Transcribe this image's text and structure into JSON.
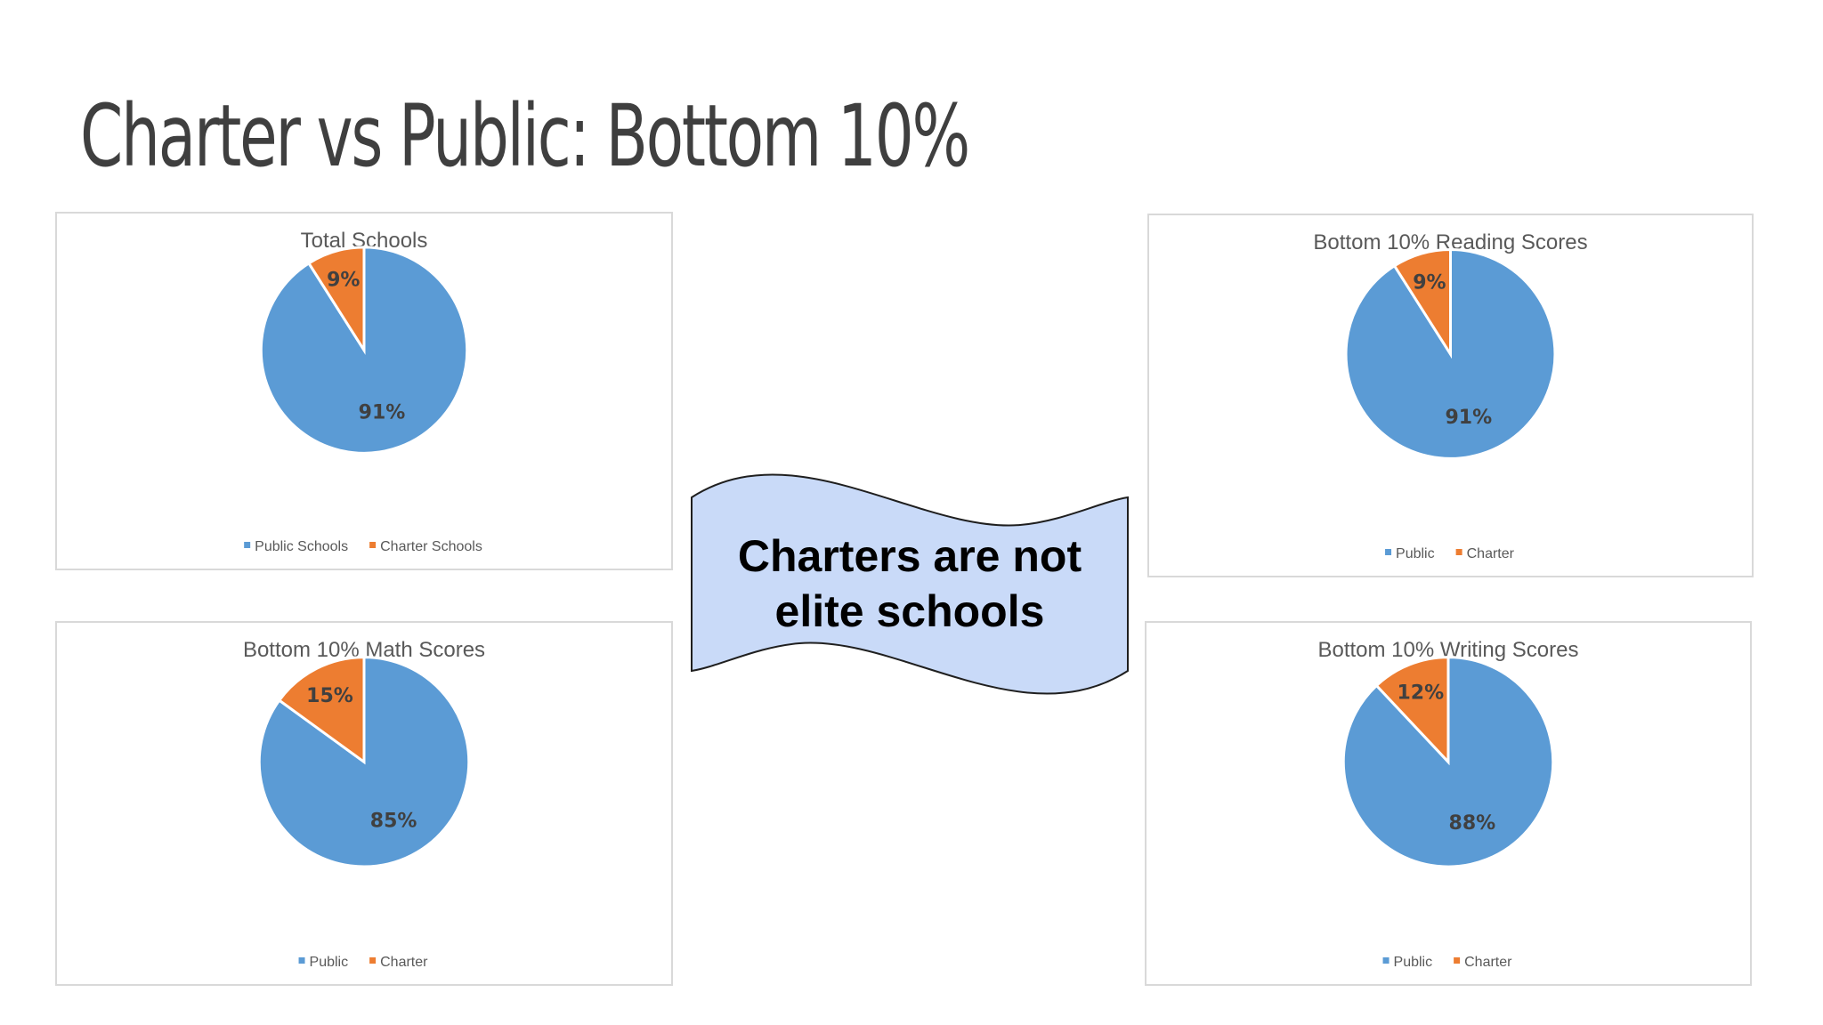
{
  "slide": {
    "title": "Charter vs Public: Bottom 10%",
    "callout_line1": "Charters are not",
    "callout_line2": "elite schools"
  },
  "colors": {
    "public": "#5b9bd5",
    "charter": "#ed7d31",
    "callout_fill": "#c9daf8",
    "title_text": "#3f3f3f"
  },
  "chart_data": [
    {
      "type": "pie",
      "title": "Total Schools",
      "categories": [
        "Public Schools",
        "Charter Schools"
      ],
      "values": [
        91,
        9
      ],
      "labels": [
        "91%",
        "9%"
      ],
      "legend": "bottom"
    },
    {
      "type": "pie",
      "title": "Bottom 10% Reading Scores",
      "categories": [
        "Public",
        "Charter"
      ],
      "values": [
        91,
        9
      ],
      "labels": [
        "91%",
        "9%"
      ],
      "legend": "bottom"
    },
    {
      "type": "pie",
      "title": "Bottom 10% Math Scores",
      "categories": [
        "Public",
        "Charter"
      ],
      "values": [
        85,
        15
      ],
      "labels": [
        "85%",
        "15%"
      ],
      "legend": "bottom"
    },
    {
      "type": "pie",
      "title": "Bottom 10% Writing Scores",
      "categories": [
        "Public",
        "Charter"
      ],
      "values": [
        88,
        12
      ],
      "labels": [
        "88%",
        "12%"
      ],
      "legend": "bottom"
    }
  ]
}
